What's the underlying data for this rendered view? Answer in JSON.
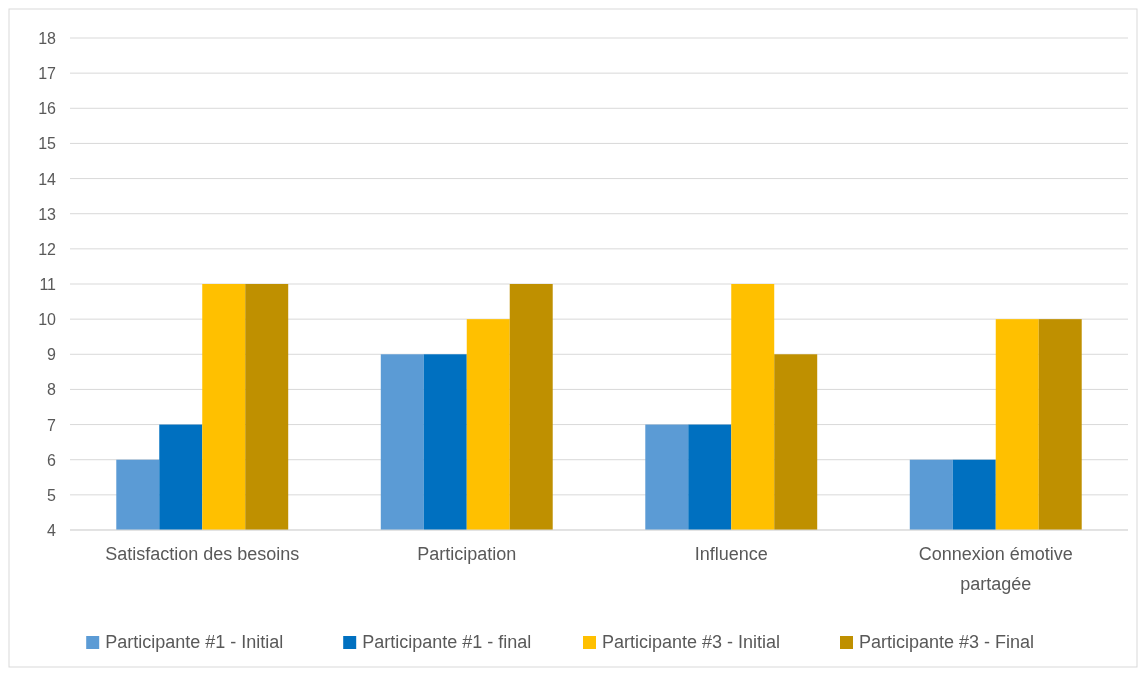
{
  "chart_data": {
    "type": "bar",
    "categories": [
      "Satisfaction des besoins",
      "Participation",
      "Influence",
      "Connexion émotive partagée"
    ],
    "series": [
      {
        "name": "Participante #1 - Initial",
        "color": "#5b9bd5",
        "values": [
          6,
          9,
          7,
          6
        ]
      },
      {
        "name": "Participante #1 - final",
        "color": "#0070c0",
        "values": [
          7,
          9,
          7,
          6
        ]
      },
      {
        "name": "Participante #3 - Initial",
        "color": "#ffc000",
        "values": [
          11,
          10,
          11,
          10
        ]
      },
      {
        "name": "Participante #3 - Final",
        "color": "#bf9000",
        "values": [
          11,
          11,
          9,
          10
        ]
      }
    ],
    "ylim": [
      4,
      18
    ],
    "yticks": [
      4,
      5,
      6,
      7,
      8,
      9,
      10,
      11,
      12,
      13,
      14,
      15,
      16,
      17,
      18
    ],
    "grid": "y",
    "legend": "bottom"
  }
}
